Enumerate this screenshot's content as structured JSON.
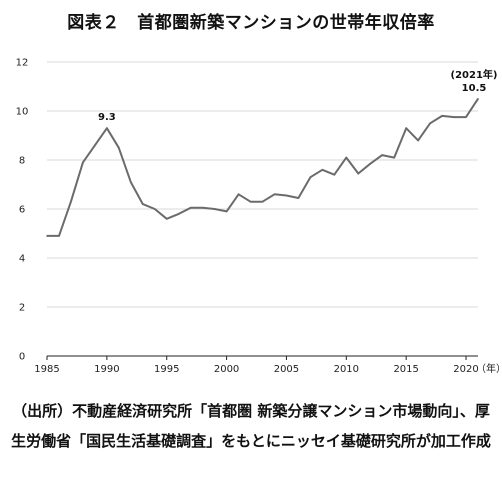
{
  "chart_data": {
    "type": "line",
    "title": "図表２　首都圏新築マンションの世帯年収倍率",
    "x_unit": "（年）",
    "y_ticks": [
      0,
      2,
      4,
      6,
      8,
      10,
      12
    ],
    "x_ticks": [
      1985,
      1990,
      1995,
      2000,
      2005,
      2010,
      2015,
      2020
    ],
    "ylim": [
      0,
      12
    ],
    "xlim": [
      1985,
      2021
    ],
    "series": [
      {
        "color": "#6b6b6b",
        "x": [
          1985,
          1986,
          1987,
          1988,
          1989,
          1990,
          1991,
          1992,
          1993,
          1994,
          1995,
          1996,
          1997,
          1998,
          1999,
          2000,
          2001,
          2002,
          2003,
          2004,
          2005,
          2006,
          2007,
          2008,
          2009,
          2010,
          2011,
          2012,
          2013,
          2014,
          2015,
          2016,
          2017,
          2018,
          2019,
          2020,
          2021
        ],
        "values": [
          4.9,
          4.9,
          6.3,
          7.9,
          8.6,
          9.3,
          8.5,
          7.1,
          6.2,
          6.0,
          5.6,
          5.8,
          6.05,
          6.05,
          6.0,
          5.9,
          6.6,
          6.3,
          6.3,
          6.6,
          6.55,
          6.45,
          7.3,
          7.6,
          7.4,
          8.1,
          7.45,
          7.85,
          8.2,
          8.1,
          9.3,
          8.8,
          9.5,
          9.8,
          9.75,
          9.75,
          10.5
        ]
      }
    ],
    "annotations": [
      {
        "text": "9.3",
        "x": 1990,
        "y": 9.3
      },
      {
        "text": "(2021年)",
        "x": 2021,
        "y": 10.5
      },
      {
        "text": "10.5",
        "x": 2021,
        "y": 10.5
      }
    ]
  },
  "source_note": "（出所）不動産経済研究所「首都圏 新築分譲マンション市場動向」、厚生労働省「国民生活基礎調査」をもとにニッセイ基礎研究所が加工作成"
}
